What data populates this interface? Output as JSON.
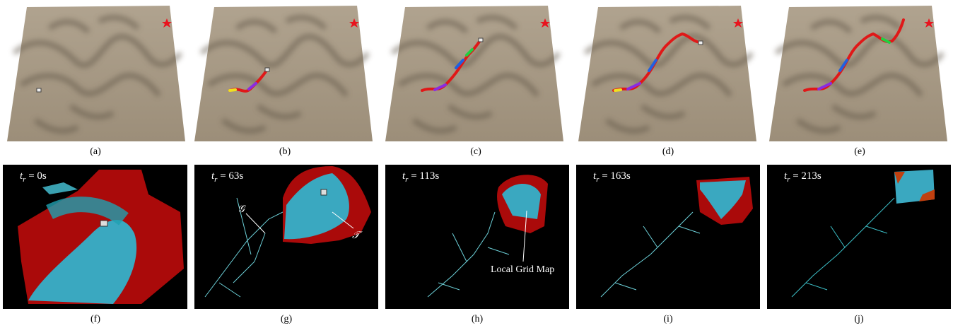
{
  "panels": [
    {
      "label": "(a)"
    },
    {
      "label": "(b)"
    },
    {
      "label": "(c)"
    },
    {
      "label": "(d)"
    },
    {
      "label": "(e)"
    },
    {
      "label": "(f)",
      "time": {
        "symbol": "t",
        "subscript": "r",
        "value": " = 0s"
      }
    },
    {
      "label": "(g)",
      "time": {
        "symbol": "t",
        "subscript": "r",
        "value": " = 63s"
      },
      "annotations": [
        "𝒢",
        "𝒯"
      ]
    },
    {
      "label": "(h)",
      "time": {
        "symbol": "t",
        "subscript": "r",
        "value": " = 113s"
      },
      "annotations": [
        "Local Grid Map"
      ]
    },
    {
      "label": "(i)",
      "time": {
        "symbol": "t",
        "subscript": "r",
        "value": " = 163s"
      }
    },
    {
      "label": "(j)",
      "time": {
        "symbol": "t",
        "subscript": "r",
        "value": " = 213s"
      }
    }
  ]
}
